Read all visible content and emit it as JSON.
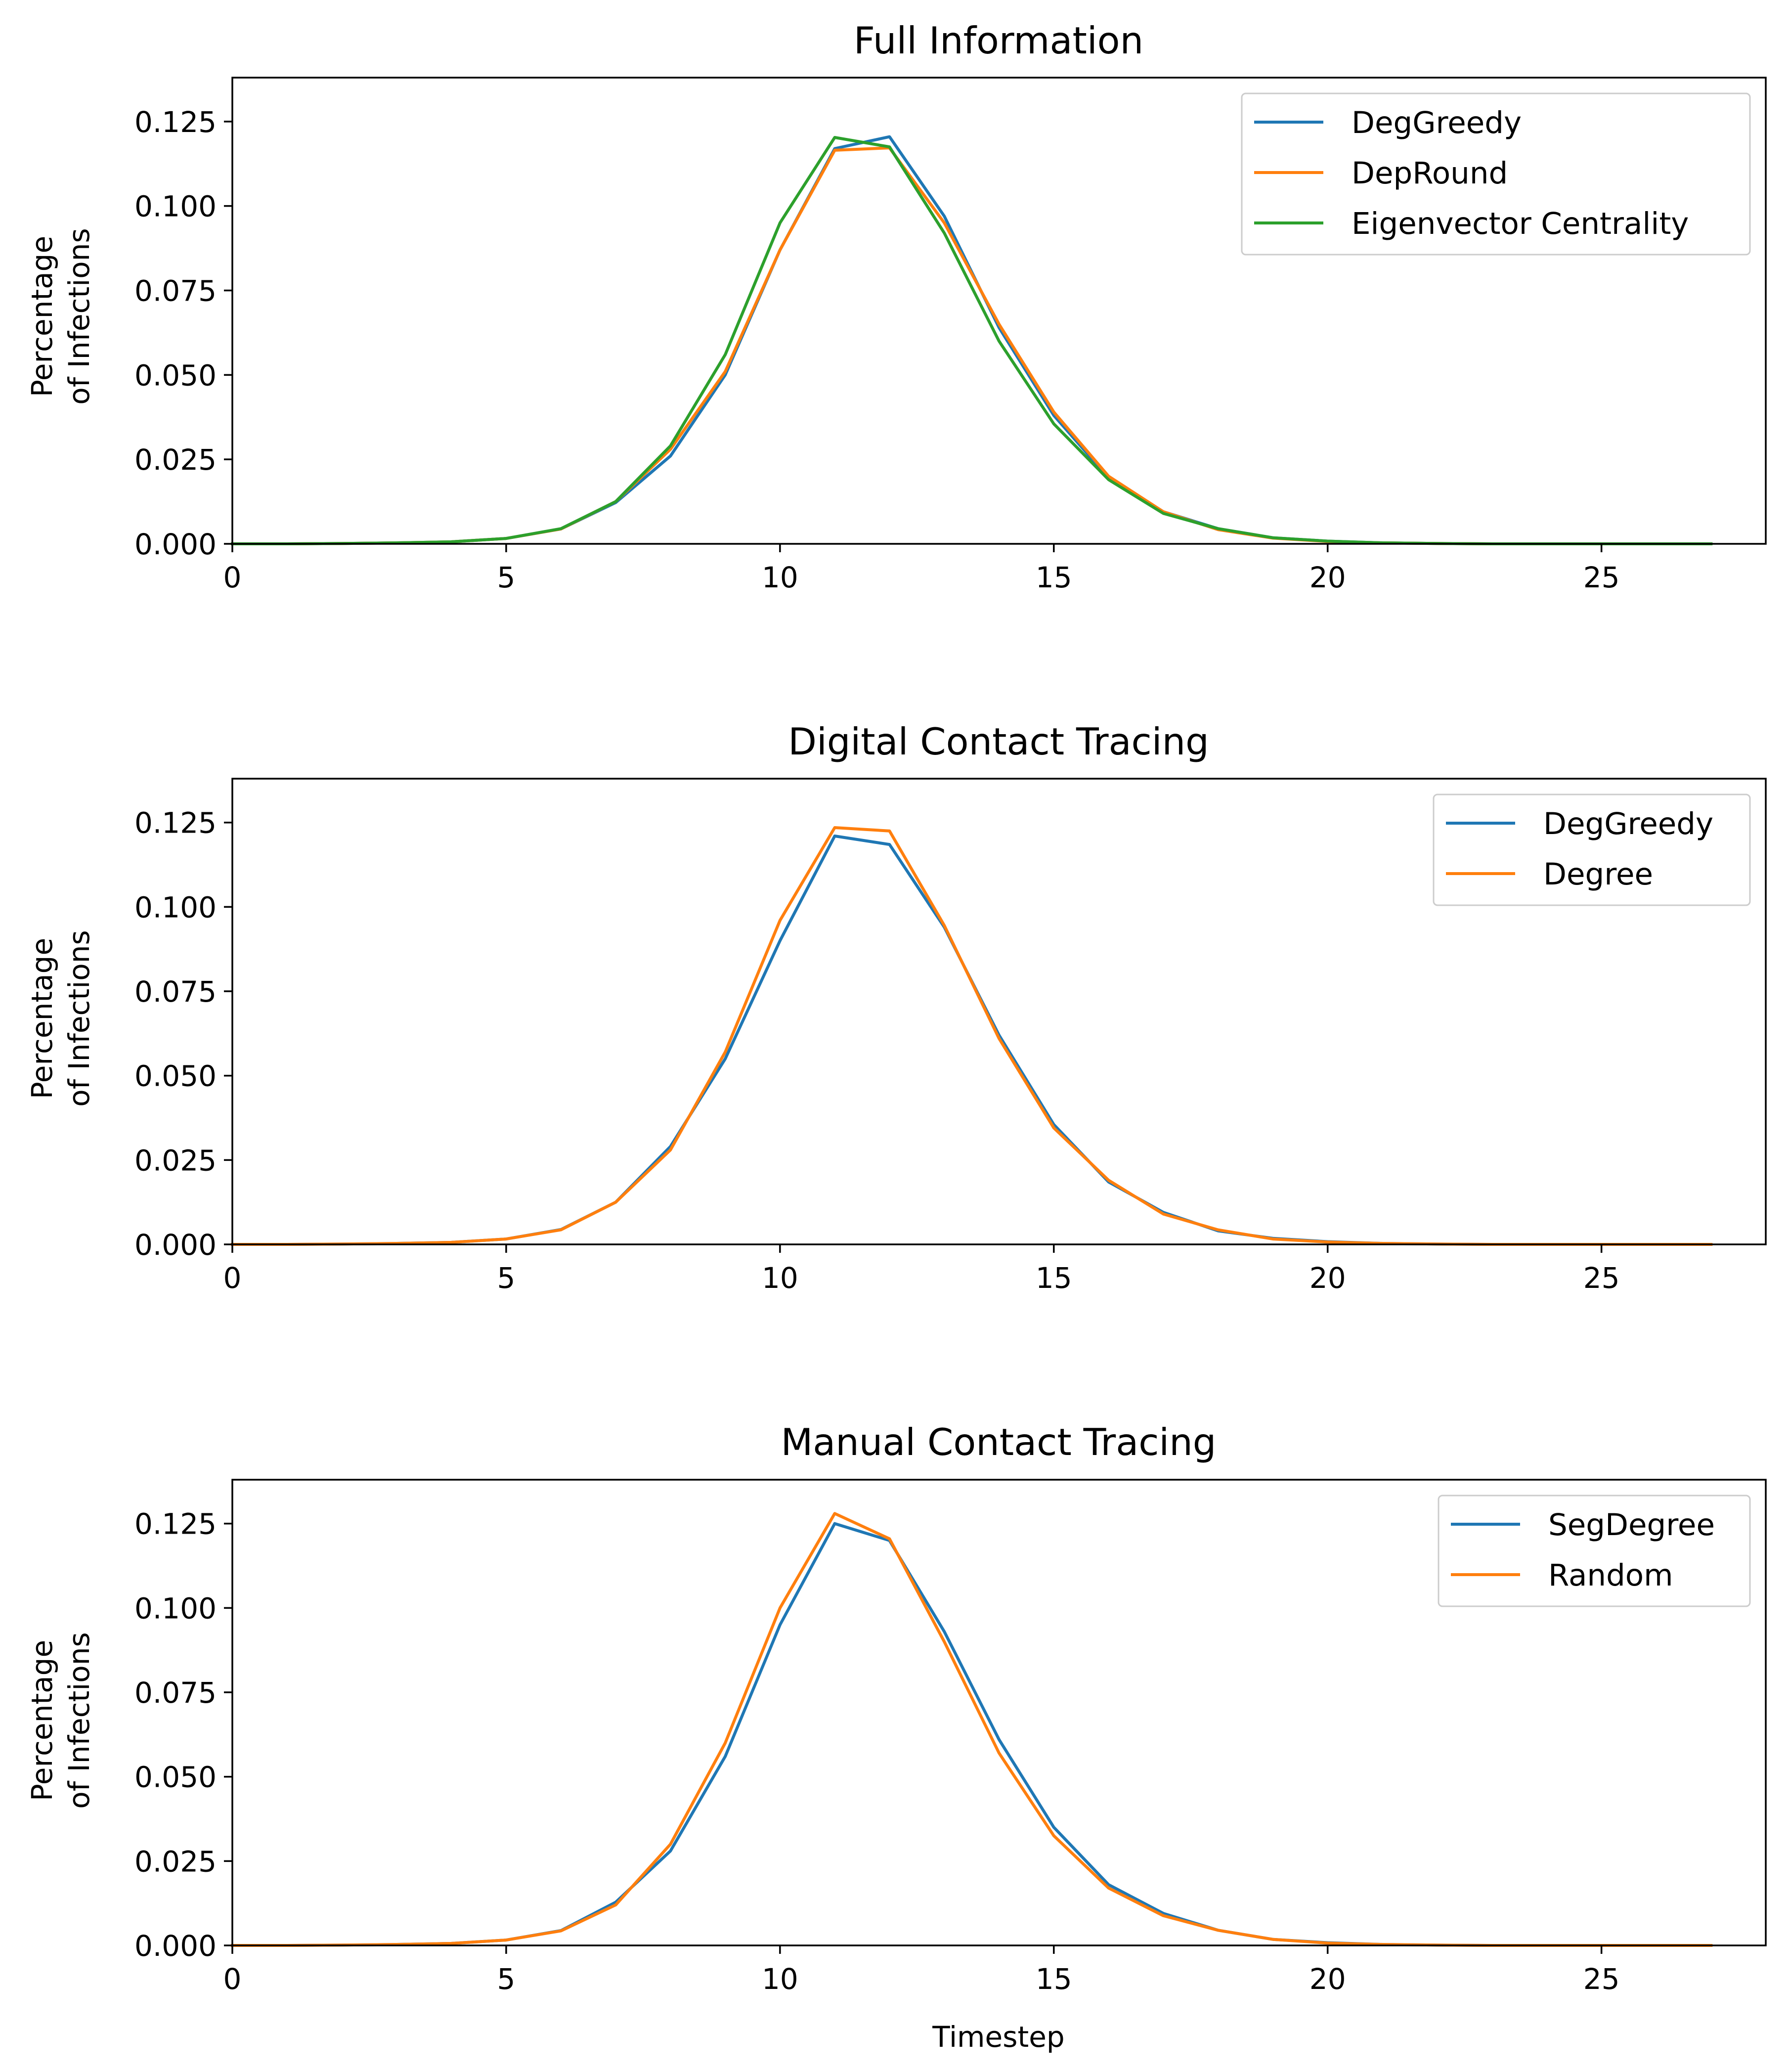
{
  "chart_data": [
    {
      "type": "line",
      "title": "Full Information",
      "xlabel": "",
      "ylabel_lines": [
        "Percentage",
        "of Infections"
      ],
      "xlim": [
        0,
        28
      ],
      "ylim": [
        0,
        0.138
      ],
      "xticks": [
        0,
        5,
        10,
        15,
        20,
        25
      ],
      "xtick_labels": [
        "0",
        "5",
        "10",
        "15",
        "20",
        "25"
      ],
      "yticks": [
        0,
        0.025,
        0.05,
        0.075,
        0.1,
        0.125
      ],
      "ytick_labels": [
        "0.000",
        "0.025",
        "0.050",
        "0.075",
        "0.100",
        "0.125"
      ],
      "legend_position": "upper-right",
      "x": [
        0,
        1,
        2,
        3,
        4,
        5,
        6,
        7,
        8,
        9,
        10,
        11,
        12,
        13,
        14,
        15,
        16,
        17,
        18,
        19,
        20,
        21,
        22,
        23,
        24,
        25,
        26,
        27
      ],
      "series": [
        {
          "name": "DegGreedy",
          "color": "#1f77b4",
          "values": [
            0,
            0,
            0.0001,
            0.0003,
            0.0006,
            0.0016,
            0.0044,
            0.0122,
            0.026,
            0.05,
            0.087,
            0.117,
            0.1205,
            0.097,
            0.064,
            0.038,
            0.0195,
            0.0095,
            0.0045,
            0.0018,
            0.0008,
            0.0003,
            0.0001,
            0,
            0,
            0,
            0,
            0
          ]
        },
        {
          "name": "DepRound",
          "color": "#ff7f0e",
          "values": [
            0,
            0,
            0.0001,
            0.0003,
            0.0006,
            0.0016,
            0.0044,
            0.0125,
            0.028,
            0.051,
            0.087,
            0.1165,
            0.1172,
            0.095,
            0.065,
            0.039,
            0.02,
            0.0095,
            0.0042,
            0.0017,
            0.0007,
            0.0003,
            0.0001,
            0,
            0,
            0,
            0,
            0
          ]
        },
        {
          "name": "Eigenvector Centrality",
          "color": "#2ca02c",
          "values": [
            0,
            0,
            0.0001,
            0.0003,
            0.0006,
            0.0016,
            0.0045,
            0.0125,
            0.029,
            0.056,
            0.095,
            0.1203,
            0.1175,
            0.092,
            0.06,
            0.0355,
            0.019,
            0.009,
            0.0045,
            0.0018,
            0.0008,
            0.0003,
            0.0001,
            0,
            0,
            0,
            0,
            0
          ]
        }
      ]
    },
    {
      "type": "line",
      "title": "Digital Contact Tracing",
      "xlabel": "",
      "ylabel_lines": [
        "Percentage",
        "of Infections"
      ],
      "xlim": [
        0,
        28
      ],
      "ylim": [
        0,
        0.138
      ],
      "xticks": [
        0,
        5,
        10,
        15,
        20,
        25
      ],
      "xtick_labels": [
        "0",
        "5",
        "10",
        "15",
        "20",
        "25"
      ],
      "yticks": [
        0,
        0.025,
        0.05,
        0.075,
        0.1,
        0.125
      ],
      "ytick_labels": [
        "0.000",
        "0.025",
        "0.050",
        "0.075",
        "0.100",
        "0.125"
      ],
      "legend_position": "upper-right",
      "x": [
        0,
        1,
        2,
        3,
        4,
        5,
        6,
        7,
        8,
        9,
        10,
        11,
        12,
        13,
        14,
        15,
        16,
        17,
        18,
        19,
        20,
        21,
        22,
        23,
        24,
        25,
        26,
        27
      ],
      "series": [
        {
          "name": "DegGreedy",
          "color": "#1f77b4",
          "values": [
            0,
            0,
            0.0001,
            0.0003,
            0.0006,
            0.0016,
            0.0044,
            0.0125,
            0.029,
            0.055,
            0.09,
            0.121,
            0.1185,
            0.094,
            0.062,
            0.0355,
            0.0185,
            0.0095,
            0.004,
            0.0018,
            0.0008,
            0.0003,
            0.0001,
            0,
            0,
            0,
            0,
            0
          ]
        },
        {
          "name": "Degree",
          "color": "#ff7f0e",
          "values": [
            0,
            0,
            0.0001,
            0.0003,
            0.0006,
            0.0016,
            0.0043,
            0.0125,
            0.028,
            0.057,
            0.096,
            0.1235,
            0.1225,
            0.0945,
            0.061,
            0.0345,
            0.019,
            0.009,
            0.0043,
            0.0016,
            0.0007,
            0.0003,
            0.0001,
            0,
            0,
            0,
            0,
            0
          ]
        }
      ]
    },
    {
      "type": "line",
      "title": "Manual Contact Tracing",
      "xlabel": "Timestep",
      "ylabel_lines": [
        "Percentage",
        "of Infections"
      ],
      "xlim": [
        0,
        28
      ],
      "ylim": [
        0,
        0.138
      ],
      "xticks": [
        0,
        5,
        10,
        15,
        20,
        25
      ],
      "xtick_labels": [
        "0",
        "5",
        "10",
        "15",
        "20",
        "25"
      ],
      "yticks": [
        0,
        0.025,
        0.05,
        0.075,
        0.1,
        0.125
      ],
      "ytick_labels": [
        "0.000",
        "0.025",
        "0.050",
        "0.075",
        "0.100",
        "0.125"
      ],
      "legend_position": "upper-right",
      "x": [
        0,
        1,
        2,
        3,
        4,
        5,
        6,
        7,
        8,
        9,
        10,
        11,
        12,
        13,
        14,
        15,
        16,
        17,
        18,
        19,
        20,
        21,
        22,
        23,
        24,
        25,
        26,
        27
      ],
      "series": [
        {
          "name": "SegDegree",
          "color": "#1f77b4",
          "values": [
            0,
            0,
            0.0001,
            0.0003,
            0.0006,
            0.0016,
            0.0044,
            0.0128,
            0.028,
            0.056,
            0.095,
            0.125,
            0.12,
            0.093,
            0.061,
            0.035,
            0.018,
            0.0095,
            0.0045,
            0.0018,
            0.0008,
            0.0003,
            0.0001,
            0,
            0,
            0,
            0,
            0
          ]
        },
        {
          "name": "Random",
          "color": "#ff7f0e",
          "values": [
            0,
            0,
            0.0001,
            0.0003,
            0.0006,
            0.0016,
            0.0043,
            0.012,
            0.03,
            0.06,
            0.1,
            0.128,
            0.1205,
            0.09,
            0.057,
            0.0325,
            0.017,
            0.0088,
            0.0045,
            0.0018,
            0.0007,
            0.0003,
            0.0001,
            0,
            0,
            0,
            0,
            0
          ]
        }
      ]
    }
  ]
}
